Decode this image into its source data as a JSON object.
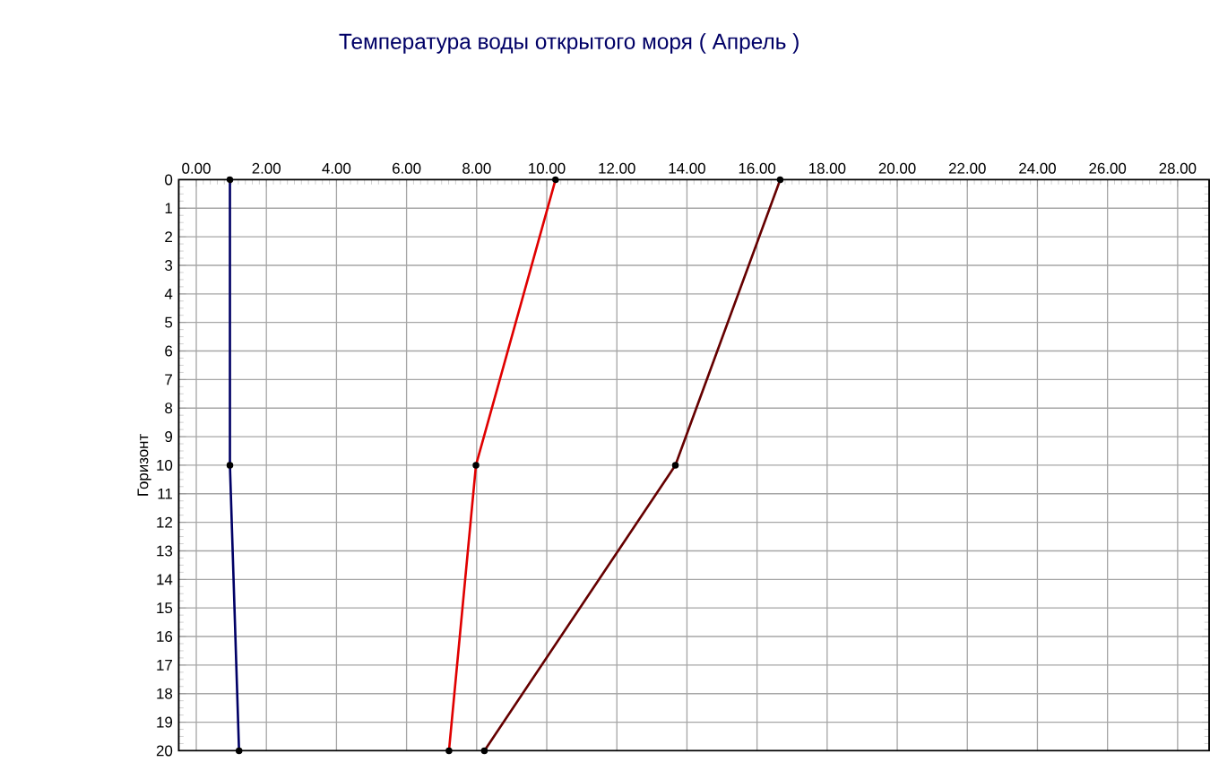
{
  "chart_data": {
    "type": "line",
    "title": "Температура воды открытого моря     ( Апрель )",
    "ylabel": "Горизонт",
    "xlim": [
      -0.5,
      28.9
    ],
    "xticks": [
      {
        "value": 0,
        "label": "0.00"
      },
      {
        "value": 2,
        "label": "2.00"
      },
      {
        "value": 4,
        "label": "4.00"
      },
      {
        "value": 6,
        "label": "6.00"
      },
      {
        "value": 8,
        "label": "8.00"
      },
      {
        "value": 10,
        "label": "10.00"
      },
      {
        "value": 12,
        "label": "12.00"
      },
      {
        "value": 14,
        "label": "14.00"
      },
      {
        "value": 16,
        "label": "16.00"
      },
      {
        "value": 18,
        "label": "18.00"
      },
      {
        "value": 20,
        "label": "20.00"
      },
      {
        "value": 22,
        "label": "22.00"
      },
      {
        "value": 24,
        "label": "24.00"
      },
      {
        "value": 26,
        "label": "26.00"
      },
      {
        "value": 28,
        "label": "28.00"
      }
    ],
    "ylim": [
      20,
      0
    ],
    "yticks": [
      0,
      1,
      2,
      3,
      4,
      5,
      6,
      7,
      8,
      9,
      10,
      11,
      12,
      13,
      14,
      15,
      16,
      17,
      18,
      19,
      20
    ],
    "grid": true,
    "marker": "circle",
    "line_style": "solid",
    "series": [
      {
        "color": "#000066",
        "x": [
          0.96,
          0.96,
          1.22
        ],
        "values": [
          0,
          10,
          20
        ]
      },
      {
        "color": "#e00000",
        "x": [
          10.25,
          7.98,
          7.21
        ],
        "values": [
          0,
          10,
          20
        ]
      },
      {
        "color": "#660000",
        "x": [
          16.66,
          13.67,
          8.22
        ],
        "values": [
          0,
          10,
          20
        ]
      }
    ]
  }
}
